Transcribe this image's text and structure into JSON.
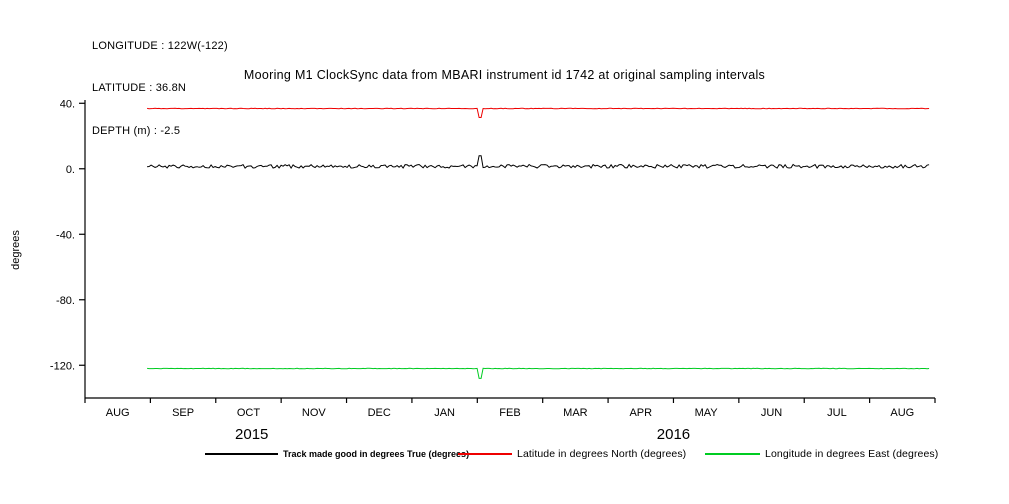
{
  "header": {
    "longitude_line": "LONGITUDE : 122W(-122)",
    "latitude_line": "LATITUDE : 36.8N",
    "depth_line": "DEPTH (m) : -2.5"
  },
  "title": "Mooring M1 ClockSync data from MBARI instrument id 1742 at original sampling intervals",
  "chart_data": {
    "type": "line",
    "title": "Mooring M1 ClockSync data from MBARI instrument id 1742 at original sampling intervals",
    "xlabel": "",
    "ylabel": "degrees",
    "ylim": [
      -140,
      42
    ],
    "yticks": [
      {
        "value": 40,
        "label": "40."
      },
      {
        "value": 0,
        "label": "0."
      },
      {
        "value": -40,
        "label": "-40."
      },
      {
        "value": -80,
        "label": "-80."
      },
      {
        "value": -120,
        "label": "-120."
      }
    ],
    "x_months": [
      "AUG",
      "SEP",
      "OCT",
      "NOV",
      "DEC",
      "JAN",
      "FEB",
      "MAR",
      "APR",
      "MAY",
      "JUN",
      "JUL",
      "AUG"
    ],
    "year_labels": [
      {
        "text": "2015",
        "month_pos": 2.55
      },
      {
        "text": "2016",
        "month_pos": 9.0
      }
    ],
    "x_start_month": 0.95,
    "x_end_month": 12.92,
    "grid": false,
    "legend_position": "bottom",
    "series": [
      {
        "name": "Track made good in degrees True (degrees)",
        "color": "#000000",
        "value": 1.5,
        "noise": 1.1,
        "spike": {
          "month_pos": 6.05,
          "delta": 6.5
        }
      },
      {
        "name": "Latitude in degrees North (degrees)",
        "color": "#ee0000",
        "value": 36.8,
        "noise": 0.15,
        "spike": {
          "month_pos": 6.05,
          "delta": -5.5
        }
      },
      {
        "name": "Longitude in degrees East (degrees)",
        "color": "#00cc22",
        "value": -122.0,
        "noise": 0.12,
        "spike": {
          "month_pos": 6.05,
          "delta": -6.0
        }
      }
    ]
  }
}
